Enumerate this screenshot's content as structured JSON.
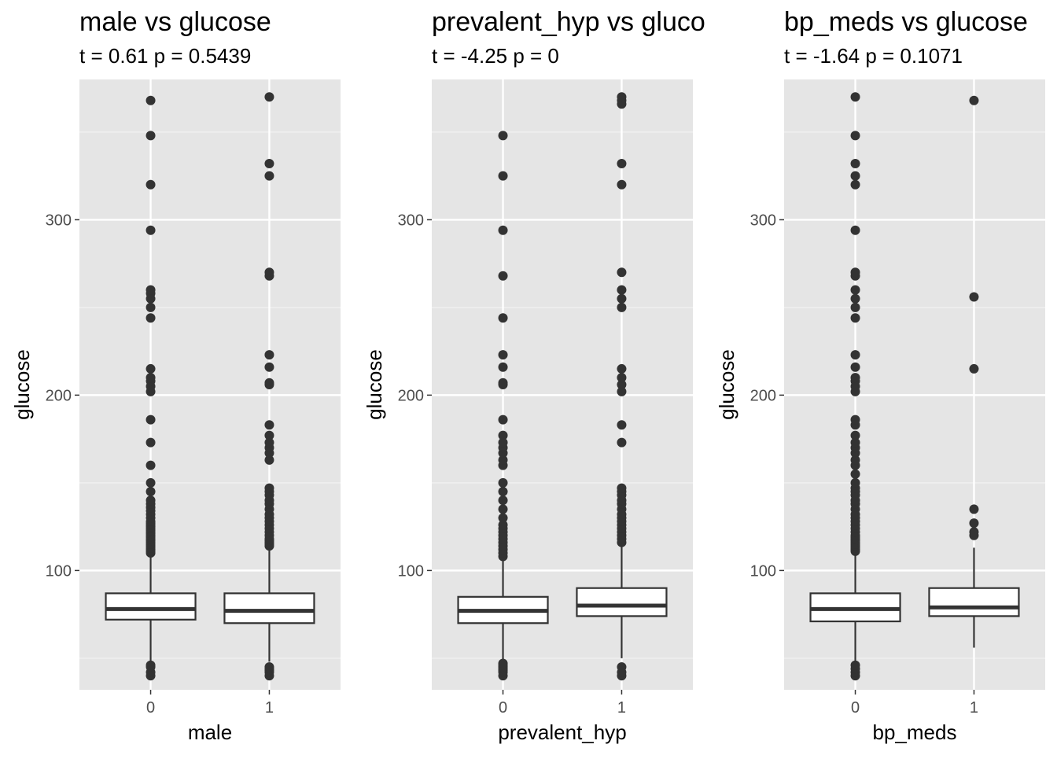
{
  "chart_data": [
    {
      "type": "box",
      "title": "male vs glucose",
      "subtitle": "t = 0.61 p = 0.5439",
      "xlabel": "male",
      "ylabel": "glucose",
      "categories": [
        "0",
        "1"
      ],
      "ylim": [
        32,
        380
      ],
      "yticks": [
        100,
        200,
        300
      ],
      "grid": true,
      "boxes": [
        {
          "category": "0",
          "whisker_low": 48,
          "q1": 72,
          "median": 78,
          "q3": 87,
          "whisker_high": 110,
          "outliers": [
            40,
            42,
            45,
            46,
            110,
            111,
            112,
            113,
            114,
            115,
            116,
            117,
            118,
            119,
            120,
            121,
            122,
            123,
            124,
            125,
            126,
            127,
            128,
            130,
            132,
            134,
            136,
            138,
            140,
            145,
            150,
            160,
            173,
            186,
            202,
            205,
            208,
            210,
            215,
            244,
            250,
            255,
            258,
            260,
            294,
            320,
            348,
            368
          ]
        },
        {
          "category": "1",
          "whisker_low": 48,
          "q1": 70,
          "median": 77,
          "q3": 87,
          "whisker_high": 113,
          "outliers": [
            40,
            42,
            43,
            44,
            45,
            114,
            115,
            116,
            117,
            118,
            120,
            122,
            124,
            126,
            128,
            130,
            132,
            135,
            138,
            140,
            143,
            145,
            147,
            163,
            167,
            170,
            173,
            177,
            183,
            206,
            207,
            216,
            223,
            268,
            270,
            325,
            332,
            370
          ]
        }
      ]
    },
    {
      "type": "box",
      "title": "prevalent_hyp vs glucose",
      "subtitle": "t = -4.25 p = 0",
      "xlabel": "prevalent_hyp",
      "ylabel": "glucose",
      "categories": [
        "0",
        "1"
      ],
      "ylim": [
        32,
        380
      ],
      "yticks": [
        100,
        200,
        300
      ],
      "grid": true,
      "boxes": [
        {
          "category": "0",
          "whisker_low": 48,
          "q1": 70,
          "median": 77,
          "q3": 85,
          "whisker_high": 107,
          "outliers": [
            40,
            42,
            43,
            44,
            45,
            46,
            47,
            108,
            110,
            112,
            114,
            116,
            118,
            120,
            122,
            124,
            126,
            130,
            135,
            140,
            145,
            150,
            160,
            163,
            167,
            170,
            173,
            177,
            186,
            206,
            207,
            216,
            223,
            244,
            268,
            294,
            325,
            348
          ]
        },
        {
          "category": "1",
          "whisker_low": 50,
          "q1": 74,
          "median": 80,
          "q3": 90,
          "whisker_high": 115,
          "outliers": [
            40,
            42,
            45,
            116,
            118,
            120,
            122,
            124,
            126,
            128,
            130,
            132,
            135,
            138,
            140,
            143,
            145,
            147,
            173,
            183,
            202,
            206,
            210,
            215,
            250,
            255,
            260,
            270,
            320,
            332,
            366,
            368,
            370
          ]
        }
      ]
    },
    {
      "type": "box",
      "title": "bp_meds vs glucose",
      "subtitle": "t = -1.64 p = 0.1071",
      "xlabel": "bp_meds",
      "ylabel": "glucose",
      "categories": [
        "0",
        "1"
      ],
      "ylim": [
        32,
        380
      ],
      "yticks": [
        100,
        200,
        300
      ],
      "grid": true,
      "boxes": [
        {
          "category": "0",
          "whisker_low": 48,
          "q1": 71,
          "median": 78,
          "q3": 87,
          "whisker_high": 110,
          "outliers": [
            40,
            42,
            44,
            46,
            111,
            112,
            113,
            114,
            115,
            116,
            117,
            118,
            119,
            120,
            122,
            124,
            126,
            128,
            130,
            132,
            135,
            138,
            140,
            143,
            145,
            147,
            150,
            155,
            160,
            163,
            167,
            170,
            173,
            177,
            183,
            186,
            202,
            205,
            208,
            210,
            216,
            223,
            244,
            250,
            255,
            260,
            268,
            270,
            294,
            320,
            325,
            332,
            348,
            370
          ]
        },
        {
          "category": "1",
          "whisker_low": 56,
          "q1": 74,
          "median": 79,
          "q3": 90,
          "whisker_high": 113,
          "outliers": [
            120,
            122,
            127,
            135,
            215,
            256,
            368
          ]
        }
      ]
    }
  ]
}
